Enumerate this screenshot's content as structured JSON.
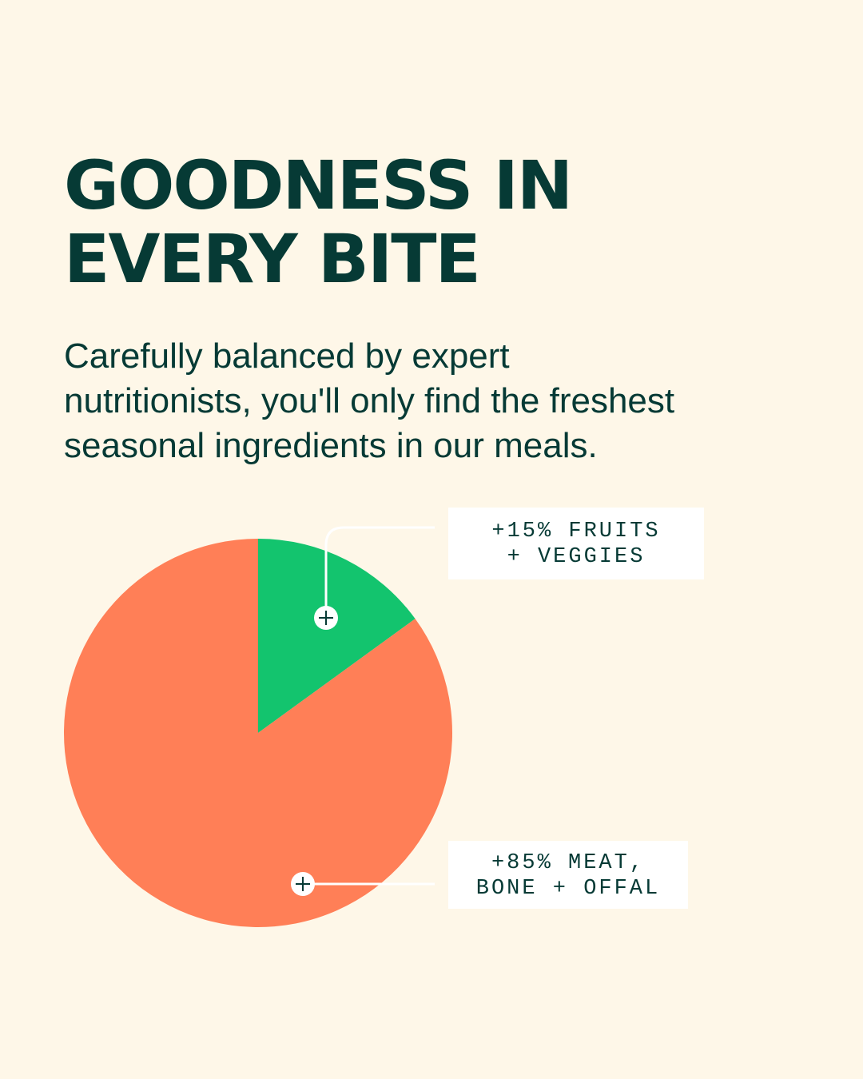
{
  "headline": {
    "line1": "GOODNESS IN",
    "line2": "EVERY BITE"
  },
  "subtext": {
    "line1": "Carefully balanced by expert",
    "line2": "nutritionists, you'll only find the freshest",
    "line3": "seasonal ingredients in our meals."
  },
  "colors": {
    "background": "#FEF7E8",
    "text": "#063A35",
    "fruits_slice": "#13C46E",
    "meat_slice": "#FF7F57",
    "label_bg": "#FFFFFF"
  },
  "chart_data": {
    "type": "pie",
    "title": "",
    "categories": [
      "+15% FRUITS + VEGGIES",
      "+85% MEAT, BONE + OFFAL"
    ],
    "values": [
      15,
      85
    ],
    "colors": [
      "#13C46E",
      "#FF7F57"
    ],
    "start": "top, clockwise",
    "legend": "callout labels to the right"
  },
  "labels": {
    "fruits": {
      "line1": "+15% FRUITS",
      "line2": "+ VEGGIES"
    },
    "meat": {
      "line1": "+85% MEAT,",
      "line2": "BONE + OFFAL"
    }
  },
  "icons": {
    "marker": "plus-circle-icon"
  }
}
